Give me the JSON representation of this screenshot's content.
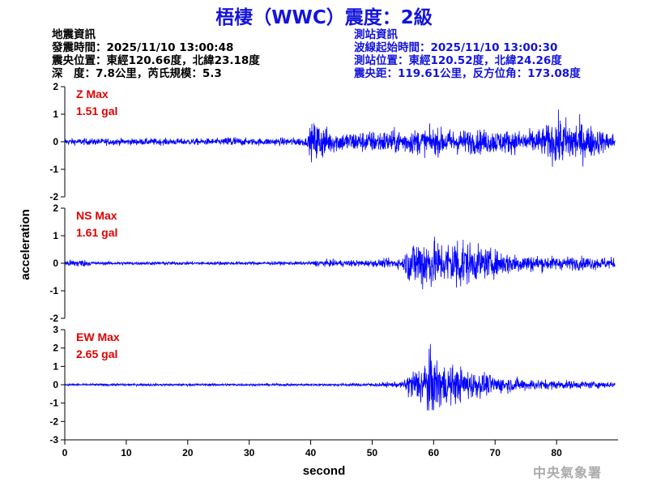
{
  "title": "梧棲（WWC）震度：2級",
  "quake_info": {
    "heading": "地震資訊",
    "time": "發震時間：2025/11/10 13:00:48",
    "epicenter": "震央位置：東經120.66度，北緯23.18度",
    "depth_mag": "深　度：7.8公里，芮氏規模：5.3"
  },
  "station_info": {
    "heading": "測站資訊",
    "wave_start": "波線起始時間：2025/11/10 13:00:30",
    "location": "測站位置：東經120.52度，北緯24.26度",
    "distance": "震央距：119.61公里，反方位角：173.08度"
  },
  "agency": "中央氣象署",
  "colors": {
    "trace": "#0000ff",
    "channel_label": "#e00000",
    "title": "#1414dc",
    "axis": "#000000"
  },
  "chart_data": {
    "type": "line",
    "xlabel": "second",
    "ylabel": "acceleration",
    "xlim": [
      0,
      90
    ],
    "xticks": [
      0,
      10,
      20,
      30,
      40,
      50,
      60,
      70,
      80
    ],
    "grid": false,
    "panels": [
      {
        "name": "Z Max",
        "max_label": "1.51 gal",
        "ylim": [
          -2,
          2
        ],
        "yticks": [
          2,
          1,
          0,
          -1,
          -2
        ],
        "envelope_t": [
          0,
          10,
          26,
          27,
          28,
          30,
          39.5,
          40,
          41,
          42,
          43,
          45,
          50,
          55,
          60,
          65,
          70,
          75,
          78,
          80,
          83,
          86,
          88,
          89.5
        ],
        "envelope_a": [
          0.15,
          0.15,
          0.15,
          0.35,
          0.2,
          0.15,
          0.2,
          0.75,
          1.0,
          0.8,
          0.55,
          0.45,
          0.5,
          0.55,
          0.6,
          0.55,
          0.55,
          0.5,
          0.65,
          1.1,
          1.0,
          0.7,
          0.45,
          0.4
        ]
      },
      {
        "name": "NS Max",
        "max_label": "1.61 gal",
        "ylim": [
          -2,
          2
        ],
        "yticks": [
          2,
          1,
          0,
          -1,
          -2
        ],
        "envelope_t": [
          0,
          2,
          5,
          40,
          41,
          50,
          55,
          56,
          58,
          60,
          62,
          64,
          66,
          70,
          75,
          80,
          85,
          89.5
        ],
        "envelope_a": [
          0.12,
          0.2,
          0.08,
          0.08,
          0.15,
          0.15,
          0.25,
          0.9,
          1.3,
          1.1,
          0.9,
          1.4,
          0.85,
          0.6,
          0.4,
          0.3,
          0.3,
          0.25
        ]
      },
      {
        "name": "EW Max",
        "max_label": "2.65 gal",
        "ylim": [
          -3,
          3
        ],
        "yticks": [
          3,
          2,
          1,
          0,
          -1,
          -2,
          -3
        ],
        "envelope_t": [
          0,
          40,
          50,
          55,
          56,
          58,
          59,
          62,
          65,
          68,
          70,
          75,
          80,
          85,
          89.5
        ],
        "envelope_a": [
          0.08,
          0.08,
          0.12,
          0.2,
          0.9,
          1.4,
          2.3,
          1.4,
          1.1,
          0.8,
          0.6,
          0.4,
          0.3,
          0.25,
          0.2
        ]
      }
    ]
  }
}
